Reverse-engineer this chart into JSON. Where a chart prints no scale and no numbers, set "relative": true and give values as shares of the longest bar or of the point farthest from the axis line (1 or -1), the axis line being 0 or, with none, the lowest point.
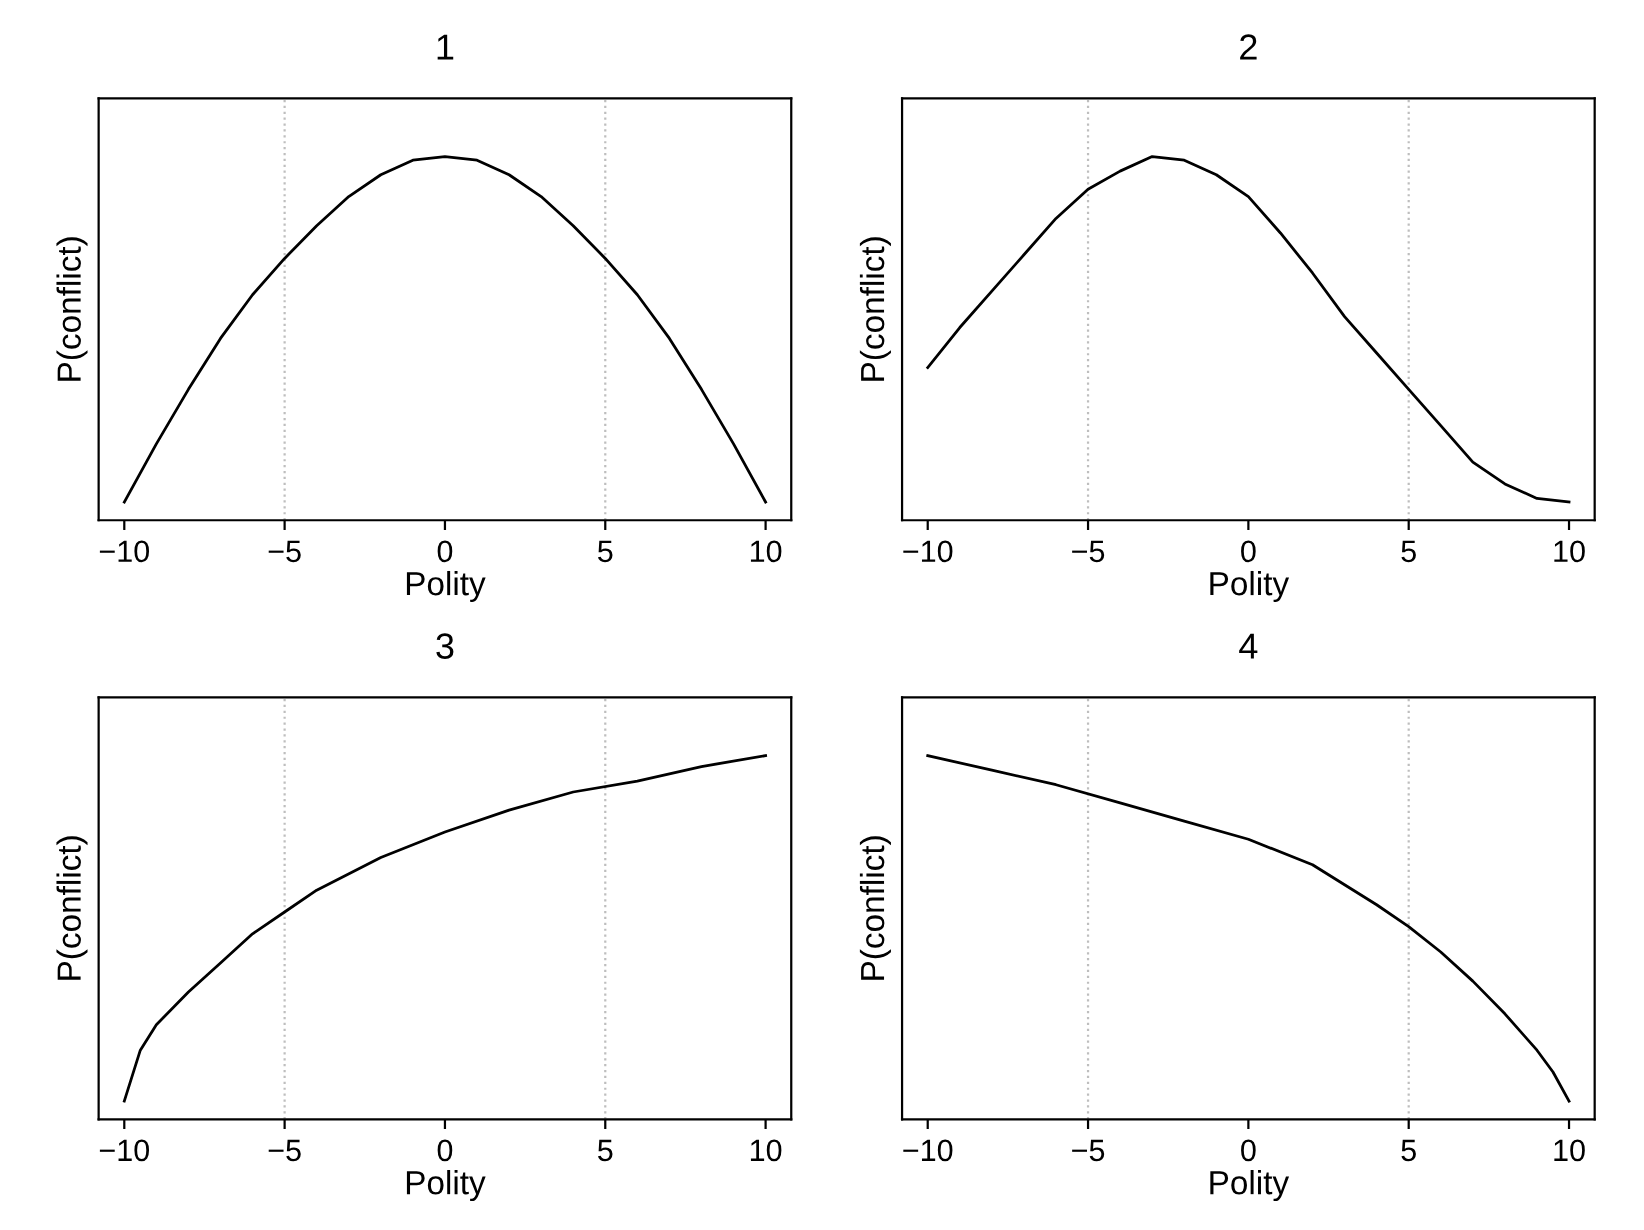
{
  "chart_data": [
    {
      "type": "line",
      "title": "1",
      "xlabel": "Polity",
      "ylabel": "P(conflict)",
      "relative": true,
      "tick_labels": "x",
      "xlim": [
        -10.8,
        10.8
      ],
      "xticks": [
        -10,
        -5,
        0,
        5,
        10
      ],
      "ref_lines": [
        {
          "axis": "x",
          "value": -5,
          "color": "#bebebe",
          "line_style": "dotted"
        },
        {
          "axis": "x",
          "value": 5,
          "color": "#bebebe",
          "line_style": "dotted"
        }
      ],
      "series": [
        {
          "color": "#000000",
          "x": [
            -10,
            -9,
            -8,
            -7,
            -6,
            -5,
            -4,
            -3,
            -2,
            -1,
            0,
            1,
            2,
            3,
            4,
            5,
            6,
            7,
            8,
            9,
            10
          ],
          "values": [
            0.05,
            0.21,
            0.36,
            0.5,
            0.62,
            0.72,
            0.81,
            0.89,
            0.95,
            0.99,
            1,
            0.99,
            0.95,
            0.89,
            0.81,
            0.72,
            0.62,
            0.5,
            0.36,
            0.21,
            0.05
          ]
        }
      ]
    },
    {
      "type": "line",
      "title": "2",
      "xlabel": "Polity",
      "ylabel": "P(conflict)",
      "relative": true,
      "tick_labels": "x",
      "xlim": [
        -10.8,
        10.8
      ],
      "xticks": [
        -10,
        -5,
        0,
        5,
        10
      ],
      "ref_lines": [
        {
          "axis": "x",
          "value": -5,
          "color": "#bebebe",
          "line_style": "dotted"
        },
        {
          "axis": "x",
          "value": 5,
          "color": "#bebebe",
          "line_style": "dotted"
        }
      ],
      "series": [
        {
          "color": "#000000",
          "x": [
            -10,
            -9,
            -8,
            -7,
            -6,
            -5,
            -4,
            -3,
            -2,
            -1,
            0,
            1,
            2,
            3,
            4,
            5,
            6,
            7,
            8,
            9,
            10
          ],
          "values": [
            0.42,
            0.53,
            0.63,
            0.73,
            0.83,
            0.91,
            0.96,
            1.0,
            0.99,
            0.95,
            0.89,
            0.79,
            0.68,
            0.56,
            0.46,
            0.36,
            0.26,
            0.16,
            0.1,
            0.06,
            0.05
          ]
        }
      ]
    },
    {
      "type": "line",
      "title": "3",
      "xlabel": "Polity",
      "ylabel": "P(conflict)",
      "relative": true,
      "tick_labels": "x",
      "xlim": [
        -10.8,
        10.8
      ],
      "xticks": [
        -10,
        -5,
        0,
        5,
        10
      ],
      "ref_lines": [
        {
          "axis": "x",
          "value": -5,
          "color": "#bebebe",
          "line_style": "dotted"
        },
        {
          "axis": "x",
          "value": 5,
          "color": "#bebebe",
          "line_style": "dotted"
        }
      ],
      "series": [
        {
          "color": "#000000",
          "x": [
            -10,
            -9.5,
            -9,
            -8,
            -7,
            -6,
            -5,
            -4,
            -2,
            0,
            2,
            4,
            6,
            8,
            10
          ],
          "values": [
            0.05,
            0.19,
            0.26,
            0.35,
            0.43,
            0.51,
            0.57,
            0.63,
            0.72,
            0.79,
            0.85,
            0.9,
            0.93,
            0.97,
            1
          ]
        }
      ]
    },
    {
      "type": "line",
      "title": "4",
      "xlabel": "Polity",
      "ylabel": "P(conflict)",
      "relative": true,
      "tick_labels": "x",
      "xlim": [
        -10.8,
        10.8
      ],
      "xticks": [
        -10,
        -5,
        0,
        5,
        10
      ],
      "ref_lines": [
        {
          "axis": "x",
          "value": -5,
          "color": "#bebebe",
          "line_style": "dotted"
        },
        {
          "axis": "x",
          "value": 5,
          "color": "#bebebe",
          "line_style": "dotted"
        }
      ],
      "series": [
        {
          "color": "#000000",
          "x": [
            -10,
            -8,
            -6,
            -4,
            -2,
            0,
            2,
            4,
            5,
            6,
            7,
            8,
            9,
            9.5,
            10
          ],
          "values": [
            1,
            0.96,
            0.92,
            0.87,
            0.82,
            0.77,
            0.7,
            0.59,
            0.53,
            0.46,
            0.38,
            0.29,
            0.19,
            0.13,
            0.05
          ]
        }
      ]
    }
  ]
}
